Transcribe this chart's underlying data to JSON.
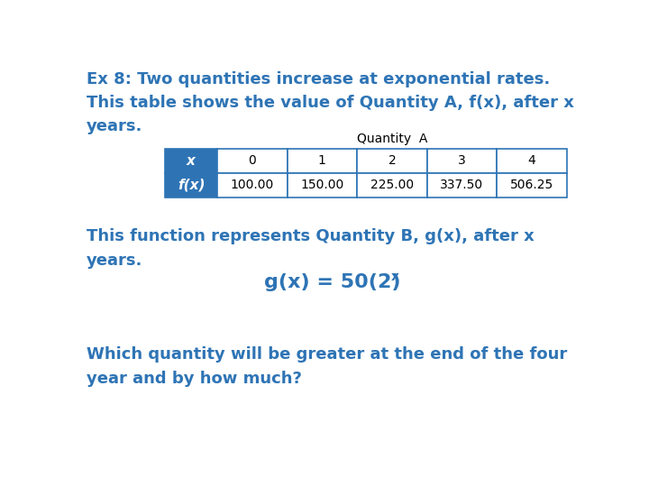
{
  "background_color": "#ffffff",
  "text_color": "#2E74B5",
  "title_line1": "Ex 8: Two quantities increase at exponential rates.",
  "title_line2": "This table shows the value of Quantity A, f(x), after x",
  "title_line3": "years.",
  "table_title": "Quantity  A",
  "table_x_label": "x",
  "table_fx_label": "f(x)",
  "table_x_values": [
    "0",
    "1",
    "2",
    "3",
    "4"
  ],
  "table_fx_values": [
    "100.00",
    "150.00",
    "225.00",
    "337.50",
    "506.25"
  ],
  "para2_line1": "This function represents Quantity B, g(x), after x",
  "para2_line2": "years.",
  "formula_main": "g(x) = 50(2)",
  "formula_exp": "x",
  "para3_line1": "Which quantity will be greater at the end of the four",
  "para3_line2": "year and by how much?",
  "header_bg": "#2E74B5",
  "header_text": "#ffffff",
  "table_border": "#2E74B5",
  "font_size_main": 13,
  "font_size_formula": 16,
  "font_size_table": 10,
  "font_size_table_header": 11
}
